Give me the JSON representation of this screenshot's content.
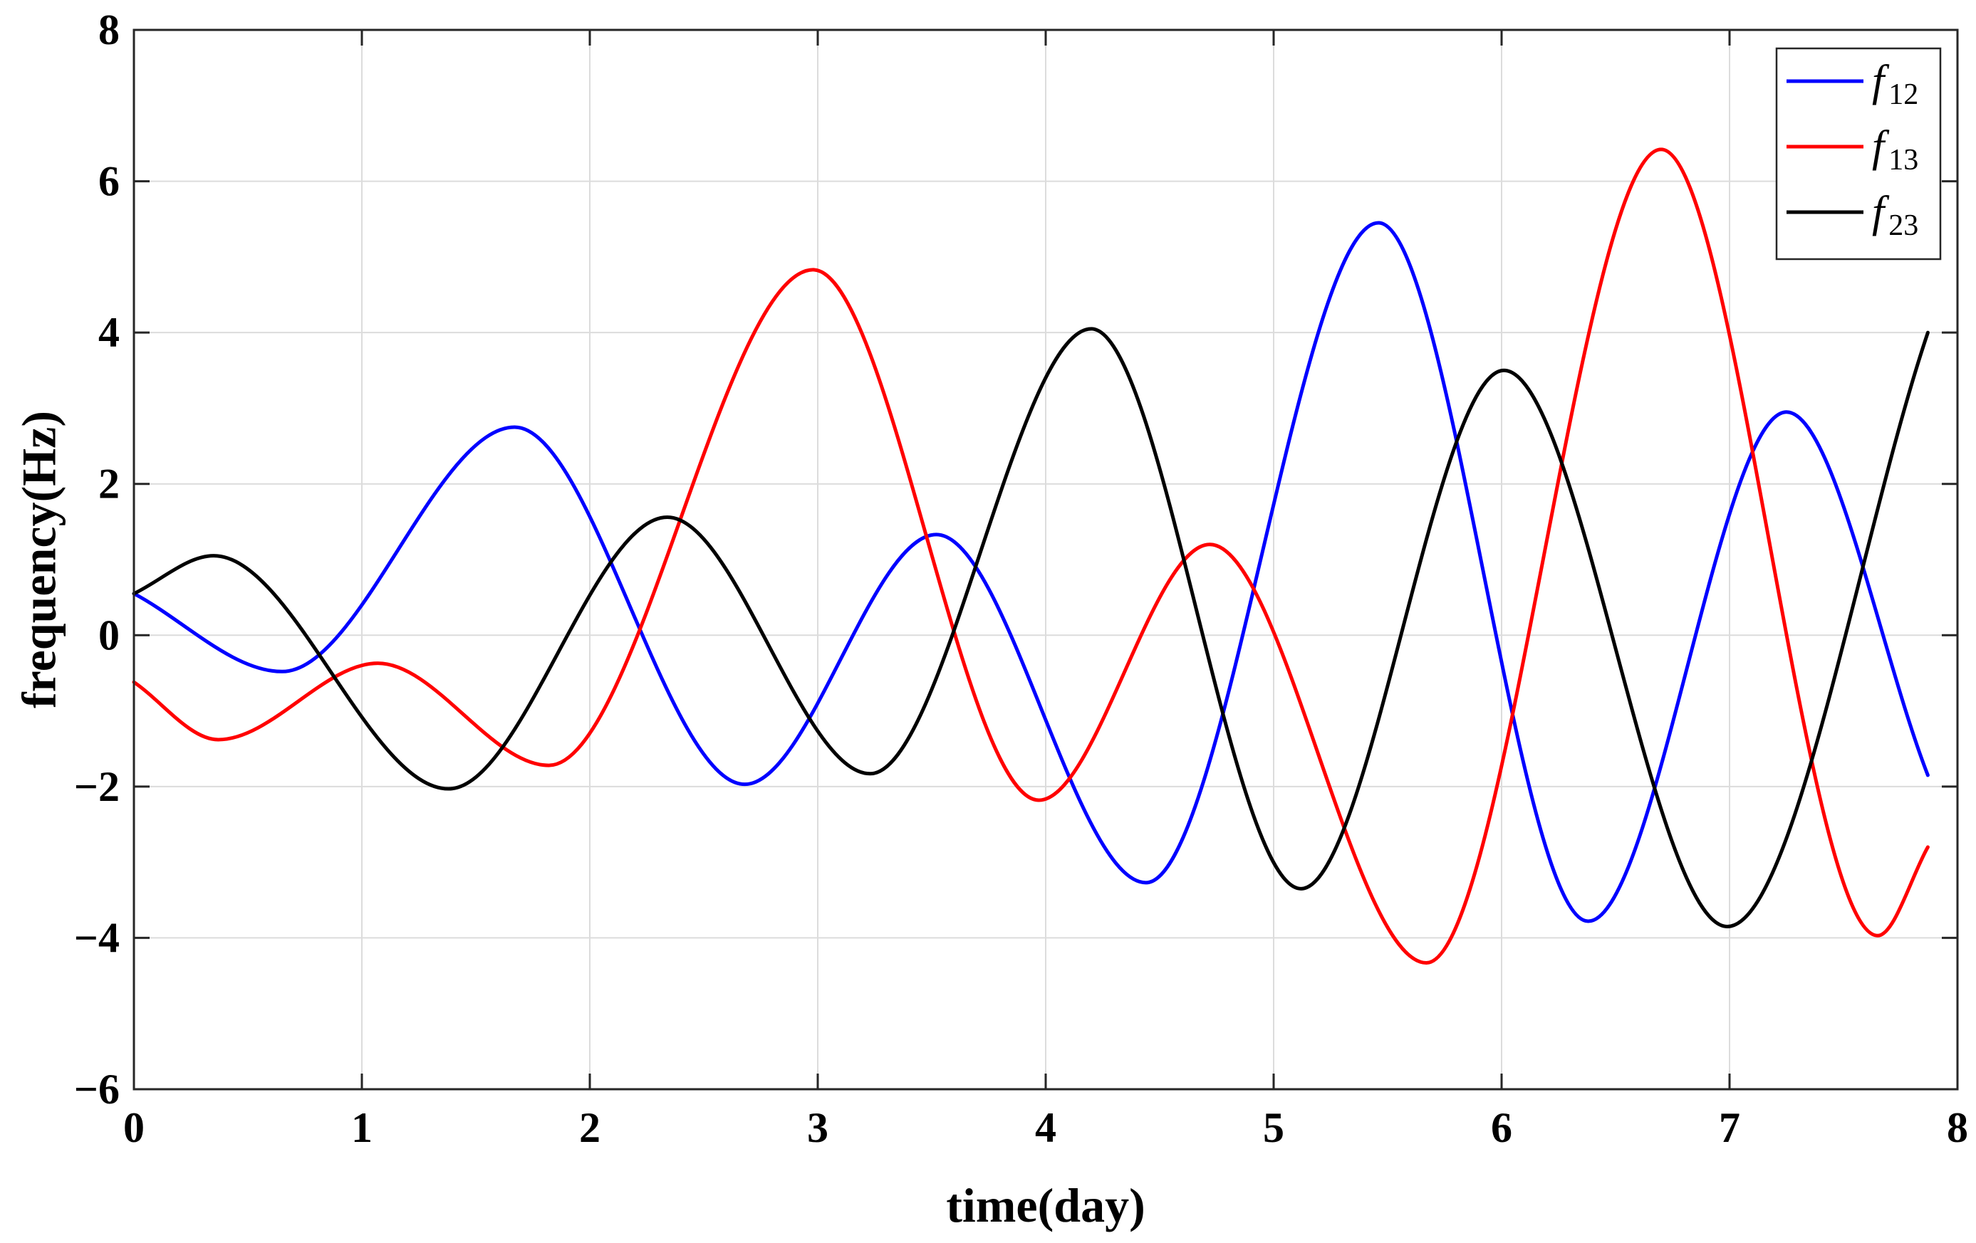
{
  "chart_data": {
    "type": "line",
    "title": "",
    "xlabel": "time(day)",
    "ylabel": "frequency(Hz)",
    "xlim": [
      0,
      8
    ],
    "ylim": [
      -6,
      8
    ],
    "xticks": [
      0,
      1,
      2,
      3,
      4,
      5,
      6,
      7,
      8
    ],
    "yticks": [
      -6,
      -4,
      -2,
      0,
      2,
      4,
      6,
      8
    ],
    "xtick_labels": [
      "0",
      "1",
      "2",
      "3",
      "4",
      "5",
      "6",
      "7",
      "8"
    ],
    "ytick_labels": [
      "−6",
      "−4",
      "−2",
      "0",
      "2",
      "4",
      "6",
      "8"
    ],
    "grid": true,
    "legend_position": "top-right",
    "series": [
      {
        "name": "f12",
        "legend_symbol": "f",
        "legend_subscript": "12",
        "color": "#0000ff",
        "x": [
          0,
          0.65,
          1.67,
          2.68,
          3.52,
          4.44,
          5.46,
          6.38,
          7.25,
          7.87
        ],
        "values": [
          0.55,
          -0.48,
          2.75,
          -1.97,
          1.33,
          -3.27,
          5.45,
          -3.78,
          2.95,
          -1.85
        ]
      },
      {
        "name": "f13",
        "legend_symbol": "f",
        "legend_subscript": "13",
        "color": "#ff0000",
        "x": [
          0,
          0.37,
          1.07,
          1.82,
          2.98,
          3.97,
          4.72,
          5.67,
          6.7,
          7.65,
          7.87
        ],
        "values": [
          -0.62,
          -1.38,
          -0.37,
          -1.72,
          4.83,
          -2.18,
          1.2,
          -4.33,
          6.42,
          -3.97,
          -2.8
        ]
      },
      {
        "name": "f23",
        "legend_symbol": "f",
        "legend_subscript": "23",
        "color": "#000000",
        "x": [
          0,
          0.35,
          1.38,
          2.34,
          3.23,
          4.2,
          5.12,
          6.01,
          6.99,
          7.87
        ],
        "values": [
          0.55,
          1.05,
          -2.03,
          1.56,
          -1.83,
          4.05,
          -3.35,
          3.5,
          -3.85,
          4.0
        ]
      }
    ]
  }
}
